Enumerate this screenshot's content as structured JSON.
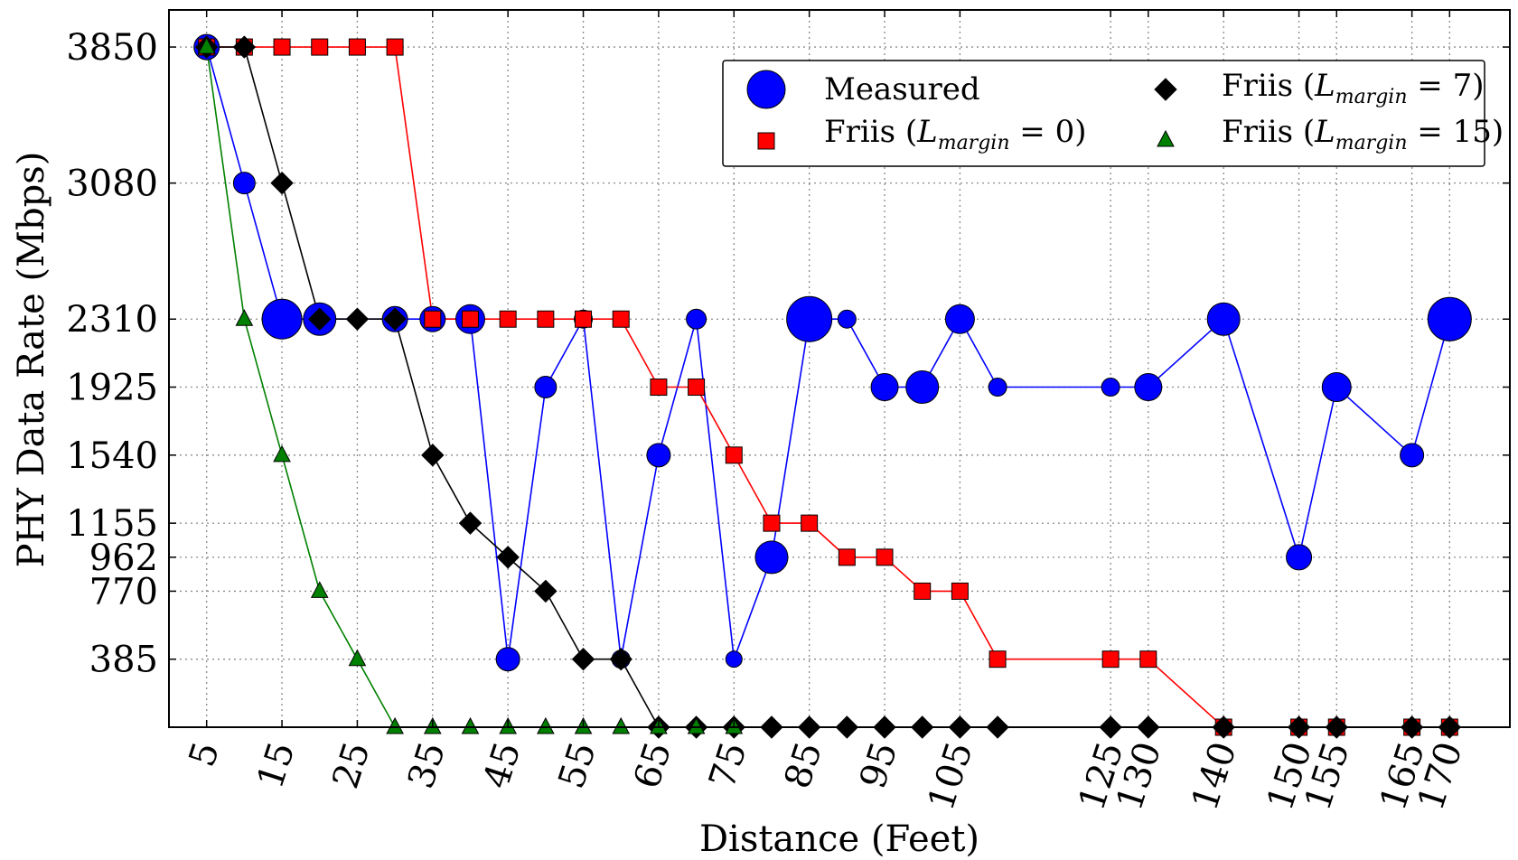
{
  "chart_data": {
    "type": "line",
    "title": "",
    "xlabel": "Distance (Feet)",
    "ylabel": "PHY Data Rate (Mbps)",
    "xlim": [
      0,
      178
    ],
    "ylim": [
      0,
      4060
    ],
    "x_ticks": [
      5,
      15,
      25,
      35,
      45,
      55,
      65,
      75,
      85,
      95,
      105,
      125,
      130,
      140,
      150,
      155,
      165,
      170
    ],
    "y_ticks": [
      385,
      770,
      962,
      1155,
      1540,
      1925,
      2310,
      3080,
      3850
    ],
    "grid": true,
    "legend_position": "top-right",
    "series": [
      {
        "name": "Measured",
        "marker": "circle",
        "color": "#0000ff",
        "x": [
          5,
          10,
          15,
          20,
          30,
          35,
          40,
          45,
          50,
          55,
          60,
          65,
          70,
          75,
          80,
          85,
          90,
          95,
          100,
          105,
          110,
          125,
          130,
          140,
          150,
          155,
          165,
          170
        ],
        "y": [
          3850,
          3080,
          2310,
          2310,
          2310,
          2310,
          2310,
          385,
          1925,
          2310,
          385,
          1540,
          2310,
          385,
          962,
          2310,
          2310,
          1925,
          1925,
          2310,
          1925,
          1925,
          1925,
          2310,
          962,
          1925,
          1540,
          2310
        ],
        "marker_size": [
          14,
          12,
          22,
          18,
          14,
          14,
          16,
          13,
          12,
          10,
          10,
          13,
          11,
          9,
          18,
          25,
          10,
          15,
          18,
          16,
          10,
          10,
          15,
          18,
          14,
          16,
          13,
          24
        ]
      },
      {
        "name": "Friis (L_margin = 0)",
        "marker": "square",
        "color": "#ff0000",
        "x": [
          5,
          10,
          15,
          20,
          25,
          30,
          35,
          40,
          45,
          50,
          55,
          60,
          65,
          70,
          75,
          80,
          85,
          90,
          95,
          100,
          105,
          110,
          125,
          130,
          140,
          150,
          155,
          165,
          170
        ],
        "y": [
          3850,
          3850,
          3850,
          3850,
          3850,
          3850,
          2310,
          2310,
          2310,
          2310,
          2310,
          2310,
          1925,
          1925,
          1540,
          1155,
          1155,
          962,
          962,
          770,
          770,
          385,
          385,
          385,
          0,
          0,
          0,
          0,
          0
        ]
      },
      {
        "name": "Friis (L_margin = 7)",
        "marker": "diamond",
        "color": "#000000",
        "x": [
          5,
          10,
          15,
          20,
          25,
          30,
          35,
          40,
          45,
          50,
          55,
          60,
          65,
          70,
          75,
          80,
          85,
          90,
          95,
          100,
          105,
          110,
          125,
          130,
          140,
          150,
          155,
          165,
          170
        ],
        "y": [
          3850,
          3850,
          3080,
          2310,
          2310,
          2310,
          1540,
          1155,
          962,
          770,
          385,
          385,
          0,
          0,
          0,
          0,
          0,
          0,
          0,
          0,
          0,
          0,
          0,
          0,
          0,
          0,
          0,
          0,
          0
        ]
      },
      {
        "name": "Friis (L_margin = 15)",
        "marker": "triangle",
        "color": "#008000",
        "x": [
          5,
          10,
          15,
          20,
          25,
          30,
          35,
          40,
          45,
          50,
          55,
          60,
          65,
          70,
          75
        ],
        "y": [
          3850,
          2310,
          1540,
          770,
          385,
          0,
          0,
          0,
          0,
          0,
          0,
          0,
          0,
          0,
          0
        ]
      }
    ]
  },
  "legend": {
    "measured": "Measured",
    "friis_prefix": "Friis (",
    "lmargin_L": "L",
    "lmargin_sub": "margin",
    "lm0_value": " = 0)",
    "lm7_value": " = 7)",
    "lm15_value": " = 15)"
  }
}
